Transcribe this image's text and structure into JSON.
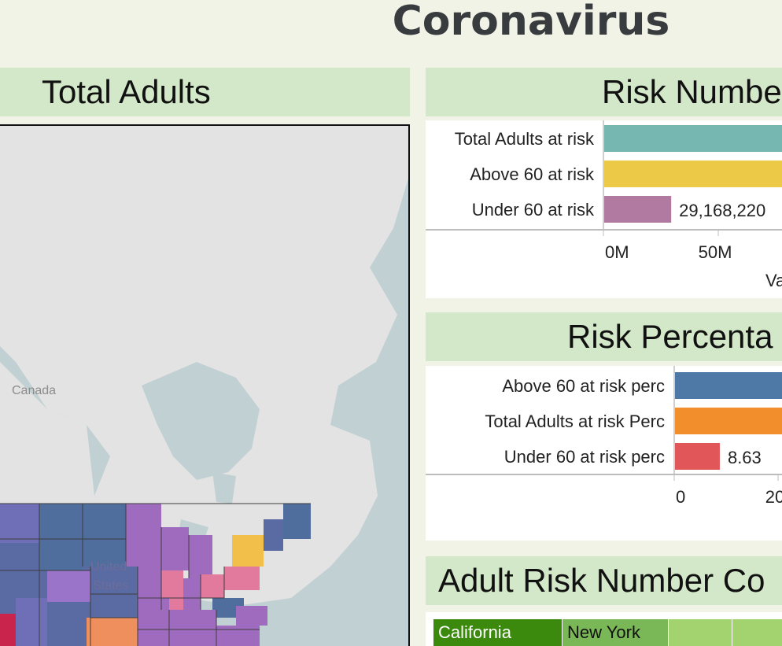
{
  "dashboard": {
    "title": "Coronavirus"
  },
  "map_panel": {
    "title": "Total Adults",
    "labels": {
      "country_canada": "Canada",
      "country_us_line1": "United",
      "country_us_line2": "States"
    }
  },
  "risk_numbers": {
    "title": "Risk Numbe",
    "chart_data": {
      "type": "bar",
      "orientation": "horizontal",
      "categories": [
        "Total Adults at risk",
        "Above 60 at risk",
        "Under 60 at risk"
      ],
      "values": [
        100000000,
        86000000,
        29168220
      ],
      "data_labels": [
        "",
        "",
        "29,168,220"
      ],
      "colors": [
        "#76b7b2",
        "#edc948",
        "#b07aa1"
      ],
      "x_ticks": [
        "0M",
        "50M"
      ],
      "x_tick_values": [
        0,
        50000000
      ],
      "xlabel": "Va"
    }
  },
  "risk_percentages": {
    "title": "Risk Percenta",
    "chart_data": {
      "type": "bar",
      "orientation": "horizontal",
      "categories": [
        "Above 60 at risk perc",
        "Total Adults at risk Perc",
        "Under 60 at risk perc"
      ],
      "values": [
        45,
        40,
        8.63
      ],
      "data_labels": [
        "",
        "",
        "8.63"
      ],
      "colors": [
        "#4e79a7",
        "#f28e2b",
        "#e15759"
      ],
      "x_ticks": [
        "0",
        "20"
      ],
      "x_tick_values": [
        0,
        20
      ]
    }
  },
  "adult_risk_table": {
    "title": "Adult Risk Number Co",
    "cells": [
      {
        "label": "California",
        "color": "#3b8a0e",
        "text_color": "#ffffff"
      },
      {
        "label": "New York",
        "color": "#7ab756",
        "text_color": "#111111"
      },
      {
        "label": "",
        "color": "#a3d36e",
        "text_color": "#111111"
      },
      {
        "label": "",
        "color": "#a3d36e",
        "text_color": "#111111"
      }
    ]
  }
}
